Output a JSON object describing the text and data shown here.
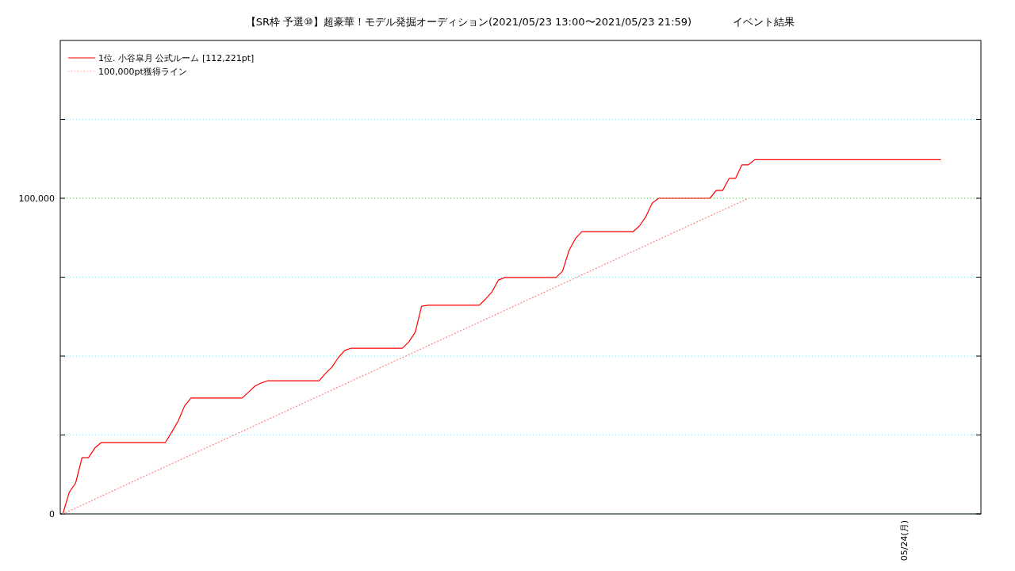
{
  "chart_data": {
    "type": "line",
    "title": "【SR枠 予選⑩】超豪華！モデル発掘オーディション(2021/05/23 13:00〜2021/05/23 21:59)　　　　イベント結果",
    "categories": [
      null,
      null,
      null,
      null,
      null,
      null,
      null,
      null,
      null,
      null,
      null,
      null,
      null,
      null,
      null,
      null,
      null,
      null,
      null,
      null,
      null,
      null,
      null,
      null,
      null,
      null,
      null,
      null,
      null,
      null,
      null,
      null,
      null,
      null,
      null,
      null,
      null,
      null,
      null,
      null,
      null,
      null,
      null,
      null,
      null,
      null,
      null,
      null,
      null,
      null,
      null,
      null,
      null,
      null,
      null,
      null,
      null,
      null,
      null,
      null,
      null,
      null,
      null,
      null,
      null,
      null,
      null,
      null,
      null,
      null,
      null,
      null,
      null,
      null,
      null,
      null,
      null,
      null,
      null,
      null,
      null,
      null,
      null,
      null,
      null,
      null,
      null,
      null,
      null,
      null,
      null,
      null,
      null,
      null,
      null,
      null,
      null,
      null,
      null,
      null,
      null,
      null,
      null,
      null,
      null,
      null,
      null,
      null,
      null,
      null,
      null,
      null,
      null,
      null,
      null,
      null,
      null,
      null,
      null,
      null,
      null,
      null,
      null,
      null,
      null,
      null,
      null,
      null,
      null,
      null,
      null,
      null,
      null,
      null,
      null,
      null,
      null,
      null
    ],
    "ylim": [
      0,
      150000
    ],
    "yticks": [
      {
        "value": 0,
        "label": "0"
      },
      {
        "value": 25000,
        "label": null
      },
      {
        "value": 50000,
        "label": null
      },
      {
        "value": 75000,
        "label": null
      },
      {
        "value": 100000,
        "label": "100,000"
      },
      {
        "value": 125000,
        "label": null
      }
    ],
    "grid": "y",
    "legend": "top left",
    "annotations": [
      "05/24(月)"
    ],
    "ref_lines": [
      {
        "axis": "y",
        "value": 100000,
        "color": "#80c040",
        "line_style": "dotted"
      }
    ],
    "series": [
      {
        "name": "1位. 小谷皐月 公式ルーム [112,221pt]",
        "color": "#ff0000",
        "line_style": "solid",
        "values": [
          0,
          6800,
          9800,
          17800,
          17800,
          20900,
          22600,
          22600,
          22600,
          22600,
          22600,
          22600,
          22600,
          22600,
          22600,
          22600,
          22600,
          25900,
          29400,
          34200,
          36700,
          36700,
          36700,
          36700,
          36700,
          36700,
          36700,
          36700,
          36700,
          38600,
          40500,
          41500,
          42200,
          42200,
          42200,
          42200,
          42200,
          42200,
          42200,
          42200,
          42200,
          44500,
          46500,
          49500,
          51800,
          52500,
          52500,
          52500,
          52500,
          52500,
          52500,
          52500,
          52500,
          52500,
          54500,
          57500,
          65800,
          66100,
          66100,
          66100,
          66100,
          66100,
          66100,
          66100,
          66100,
          66100,
          68100,
          70400,
          74100,
          74900,
          74900,
          74900,
          74900,
          74900,
          74900,
          74900,
          74900,
          74900,
          76900,
          83400,
          87200,
          89400,
          89400,
          89400,
          89400,
          89400,
          89400,
          89400,
          89400,
          89400,
          91200,
          94200,
          98500,
          100000,
          100000,
          100000,
          100000,
          100000,
          100000,
          100000,
          100000,
          100000,
          102500,
          102500,
          106300,
          106300,
          110600,
          110600,
          112221,
          112221,
          112221,
          112221,
          112221,
          112221,
          112221,
          112221,
          112221,
          112221,
          112221,
          112221,
          112221,
          112221,
          112221,
          112221,
          112221,
          112221,
          112221,
          112221,
          112221,
          112221,
          112221,
          112221,
          112221,
          112221,
          112221,
          112221,
          112221,
          112221
        ]
      },
      {
        "name": "100,000pt獲得ライン",
        "color": "#ff8080",
        "line_style": "dotted",
        "values": [
          0,
          null,
          null,
          null,
          null,
          null,
          null,
          null,
          null,
          null,
          null,
          null,
          null,
          null,
          null,
          null,
          null,
          null,
          null,
          null,
          null,
          null,
          null,
          null,
          null,
          null,
          null,
          null,
          null,
          null,
          null,
          null,
          null,
          null,
          null,
          null,
          null,
          null,
          null,
          null,
          null,
          null,
          null,
          null,
          null,
          null,
          null,
          null,
          null,
          null,
          null,
          null,
          null,
          null,
          null,
          null,
          null,
          null,
          null,
          null,
          null,
          null,
          null,
          null,
          null,
          null,
          null,
          null,
          null,
          null,
          null,
          null,
          null,
          null,
          null,
          null,
          null,
          null,
          null,
          null,
          null,
          null,
          null,
          null,
          null,
          null,
          null,
          null,
          null,
          null,
          null,
          null,
          null,
          null,
          null,
          null,
          null,
          null,
          null,
          null,
          null,
          null,
          null,
          null,
          null,
          null,
          null,
          100000,
          null,
          null,
          null,
          null,
          null,
          null,
          null,
          null,
          null,
          null,
          null,
          null,
          null,
          null,
          null,
          null,
          null,
          null,
          null,
          null,
          null,
          null,
          null,
          null,
          null,
          null,
          null,
          null,
          null,
          null
        ]
      }
    ]
  }
}
